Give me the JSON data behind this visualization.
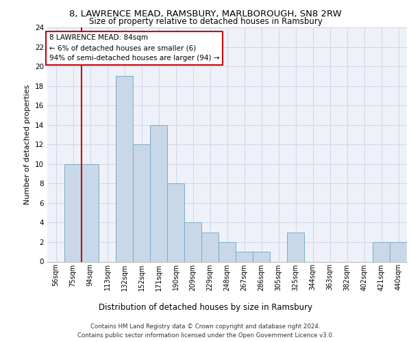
{
  "title": "8, LAWRENCE MEAD, RAMSBURY, MARLBOROUGH, SN8 2RW",
  "subtitle": "Size of property relative to detached houses in Ramsbury",
  "xlabel": "Distribution of detached houses by size in Ramsbury",
  "ylabel": "Number of detached properties",
  "categories": [
    "56sqm",
    "75sqm",
    "94sqm",
    "113sqm",
    "132sqm",
    "152sqm",
    "171sqm",
    "190sqm",
    "209sqm",
    "229sqm",
    "248sqm",
    "267sqm",
    "286sqm",
    "305sqm",
    "325sqm",
    "344sqm",
    "363sqm",
    "382sqm",
    "402sqm",
    "421sqm",
    "440sqm"
  ],
  "values": [
    0,
    10,
    10,
    0,
    19,
    12,
    14,
    8,
    4,
    3,
    2,
    1,
    1,
    0,
    3,
    0,
    0,
    0,
    0,
    2,
    2
  ],
  "bar_color": "#c8d8e8",
  "bar_edge_color": "#7aaac8",
  "grid_color": "#d0d8e8",
  "background_color": "#eef2f8",
  "vline_x_index": 1,
  "vline_color": "#cc0000",
  "annotation_lines": [
    "8 LAWRENCE MEAD: 84sqm",
    "← 6% of detached houses are smaller (6)",
    "94% of semi-detached houses are larger (94) →"
  ],
  "annotation_box_color": "#cc0000",
  "ylim": [
    0,
    24
  ],
  "yticks": [
    0,
    2,
    4,
    6,
    8,
    10,
    12,
    14,
    16,
    18,
    20,
    22,
    24
  ],
  "footer_line1": "Contains HM Land Registry data © Crown copyright and database right 2024.",
  "footer_line2": "Contains public sector information licensed under the Open Government Licence v3.0."
}
